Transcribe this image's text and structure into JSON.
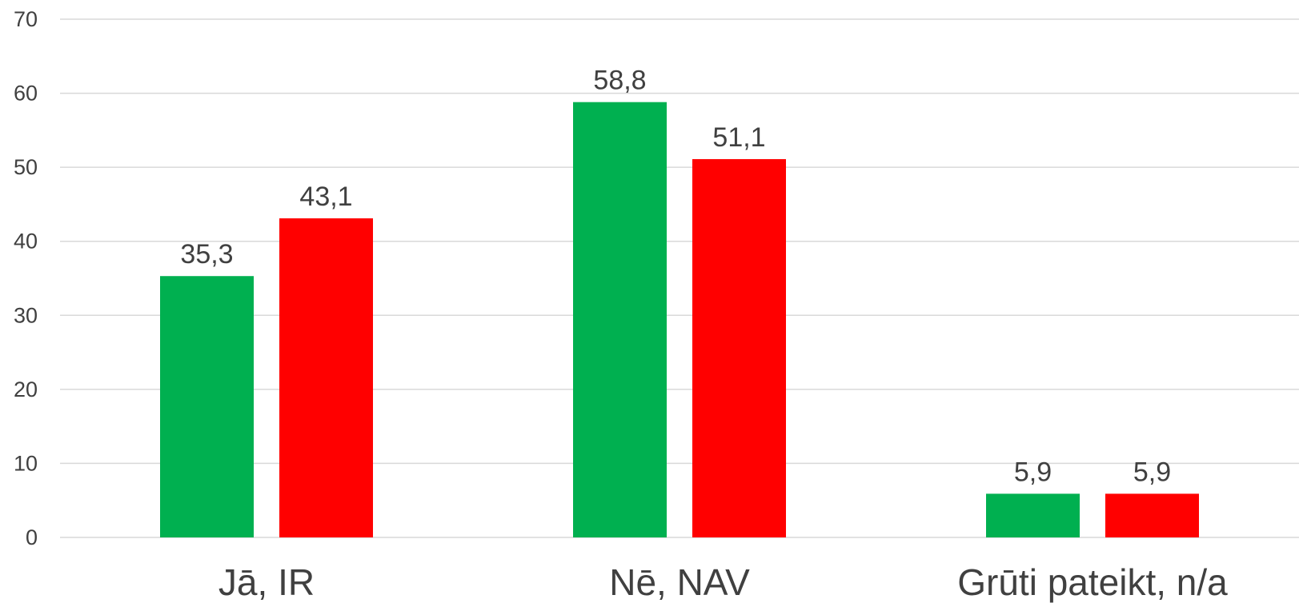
{
  "chart_data": {
    "type": "bar",
    "title": "",
    "xlabel": "",
    "ylabel": "",
    "categories": [
      "Jā, IR",
      "Nē, NAV",
      "Grūti pateikt, n/a"
    ],
    "series": [
      {
        "color": "#00b050",
        "values": [
          35.3,
          58.8,
          5.9
        ],
        "labels": [
          "35,3",
          "58,8",
          "5,9"
        ]
      },
      {
        "color": "#ff0000",
        "values": [
          43.1,
          51.1,
          5.9
        ],
        "labels": [
          "43,1",
          "51,1",
          "5,9"
        ]
      }
    ],
    "ylim": [
      0,
      70
    ],
    "yticks": [
      0,
      10,
      20,
      30,
      40,
      50,
      60,
      70
    ],
    "grid": true,
    "legend": "none"
  }
}
